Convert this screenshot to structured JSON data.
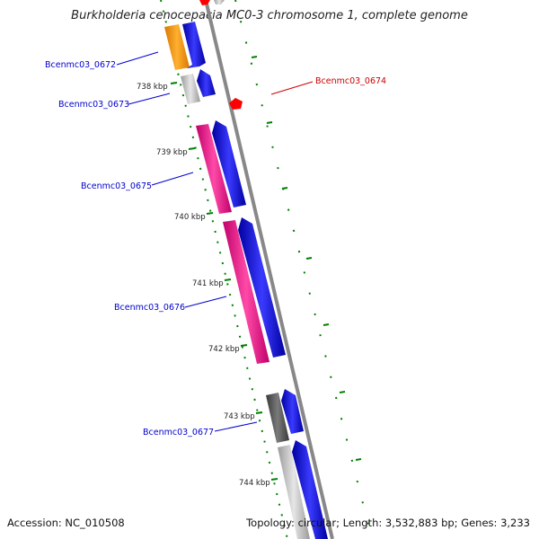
{
  "title": "Burkholderia cenocepacia MC0-3 chromosome 1, complete genome",
  "genes": [
    {
      "name": "Bcenmc03_0672",
      "color": "#0000cc"
    },
    {
      "name": "Bcenmc03_0673",
      "color": "#0000cc"
    },
    {
      "name": "Bcenmc03_0674",
      "color": "#cc0000"
    },
    {
      "name": "Bcenmc03_0675",
      "color": "#0000cc"
    },
    {
      "name": "Bcenmc03_0676",
      "color": "#0000cc"
    },
    {
      "name": "Bcenmc03_0677",
      "color": "#0000cc"
    }
  ],
  "ticks": [
    "738 kbp",
    "739 kbp",
    "740 kbp",
    "741 kbp",
    "742 kbp",
    "743 kbp",
    "744 kbp"
  ],
  "footer": {
    "accession": "Accession: NC_010508",
    "summary": "Topology: circular; Length: 3,532,883 bp; Genes: 3,233"
  },
  "colors": {
    "orange": "#ff9a00",
    "magenta": "#ff1493",
    "blue": "#0000ff",
    "red": "#ff0000",
    "light_gray": "#c0c0c0",
    "dark_gray": "#5a5a5a",
    "green_tick": "#008000",
    "backbone": "#888888"
  }
}
